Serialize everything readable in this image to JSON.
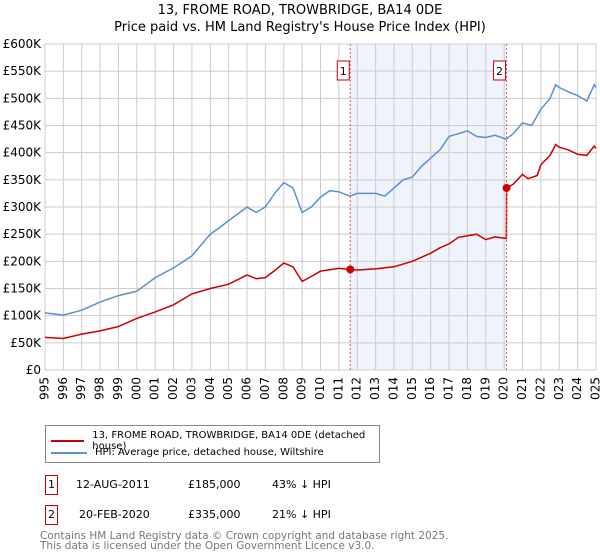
{
  "title": "13, FROME ROAD, TROWBRIDGE, BA14 0DE",
  "subtitle": "Price paid vs. HM Land Registry's House Price Index (HPI)",
  "chart_data": {
    "type": "line",
    "title": "13, FROME ROAD, TROWBRIDGE, BA14 0DE",
    "subtitle": "Price paid vs. HM Land Registry's House Price Index (HPI)",
    "xlim": [
      1995,
      2025
    ],
    "ylim": [
      0,
      600000
    ],
    "x_ticks": [
      "1995",
      "1996",
      "1997",
      "1998",
      "1999",
      "2000",
      "2001",
      "2002",
      "2003",
      "2004",
      "2005",
      "2006",
      "2007",
      "2008",
      "2009",
      "2010",
      "2011",
      "2012",
      "2013",
      "2014",
      "2015",
      "2016",
      "2017",
      "2018",
      "2019",
      "2020",
      "2021",
      "2022",
      "2023",
      "2024",
      "2025"
    ],
    "y_ticks": [
      "£0",
      "£50K",
      "£100K",
      "£150K",
      "£200K",
      "£250K",
      "£300K",
      "£350K",
      "£400K",
      "£450K",
      "£500K",
      "£550K",
      "£600K"
    ],
    "grid": true,
    "series": [
      {
        "name": "13, FROME ROAD, TROWBRIDGE, BA14 0DE (detached house)",
        "color": "#cc0000",
        "x": [
          1995,
          1996,
          1997,
          1998,
          1999,
          2000,
          2001,
          2002,
          2003,
          2004,
          2005,
          2006,
          2006.5,
          2007,
          2007.5,
          2008,
          2008.5,
          2009,
          2009.5,
          2010,
          2011,
          2011.6,
          2012,
          2013,
          2014,
          2015,
          2016,
          2016.5,
          2017,
          2017.5,
          2018,
          2018.5,
          2019,
          2019.5,
          2020.12,
          2020.13,
          2020.5,
          2021,
          2021.3,
          2021.8,
          2022,
          2022.5,
          2022.8,
          2023,
          2023.5,
          2024,
          2024.5,
          2024.9,
          2025
        ],
        "y": [
          60000,
          58000,
          66000,
          72000,
          80000,
          95000,
          107000,
          120000,
          140000,
          150000,
          158000,
          175000,
          168000,
          170000,
          183000,
          197000,
          190000,
          163000,
          172000,
          182000,
          187000,
          185000,
          184000,
          186000,
          190000,
          200000,
          215000,
          225000,
          232000,
          244000,
          247000,
          250000,
          240000,
          245000,
          242000,
          335000,
          342000,
          360000,
          352000,
          358000,
          378000,
          395000,
          415000,
          410000,
          405000,
          397000,
          395000,
          412000,
          408000
        ]
      },
      {
        "name": "HPI: Average price, detached house, Wiltshire",
        "color": "#5b8fd4",
        "x": [
          1995,
          1996,
          1997,
          1998,
          1999,
          2000,
          2001,
          2002,
          2003,
          2004,
          2004.5,
          2005,
          2006,
          2006.5,
          2007,
          2007.5,
          2008,
          2008.5,
          2009,
          2009.5,
          2010,
          2010.5,
          2011,
          2011.6,
          2012,
          2013,
          2013.5,
          2014,
          2014.5,
          2015,
          2015.5,
          2016,
          2016.5,
          2017,
          2017.5,
          2018,
          2018.5,
          2019,
          2019.5,
          2020.1,
          2020.5,
          2021,
          2021.5,
          2022,
          2022.5,
          2022.8,
          2023,
          2023.5,
          2024,
          2024.5,
          2024.9,
          2025
        ],
        "y": [
          105000,
          101000,
          110000,
          125000,
          137000,
          145000,
          170000,
          188000,
          210000,
          250000,
          262000,
          275000,
          300000,
          290000,
          300000,
          325000,
          345000,
          335000,
          290000,
          300000,
          318000,
          330000,
          328000,
          320000,
          325000,
          325000,
          320000,
          335000,
          350000,
          355000,
          375000,
          390000,
          405000,
          430000,
          435000,
          440000,
          430000,
          428000,
          432000,
          425000,
          435000,
          455000,
          450000,
          480000,
          500000,
          525000,
          520000,
          512000,
          505000,
          495000,
          525000,
          520000
        ]
      }
    ],
    "annotations": [
      {
        "label": "1",
        "x": 2011.62,
        "y": 185000
      },
      {
        "label": "2",
        "x": 2020.13,
        "y": 335000
      }
    ],
    "shaded_range": [
      2011.62,
      2020.13
    ]
  },
  "legend": {
    "items": [
      {
        "label": "13, FROME ROAD, TROWBRIDGE, BA14 0DE (detached house)",
        "color": "#cc0000"
      },
      {
        "label": "HPI: Average price, detached house, Wiltshire",
        "color": "#5b8fd4"
      }
    ]
  },
  "transactions": [
    {
      "num": "1",
      "date": "12-AUG-2011",
      "price": "£185,000",
      "hpi": "43% ↓ HPI"
    },
    {
      "num": "2",
      "date": "20-FEB-2020",
      "price": "£335,000",
      "hpi": "21% ↓ HPI"
    }
  ],
  "footer": {
    "line1": "Contains HM Land Registry data © Crown copyright and database right 2025.",
    "line2": "This data is licensed under the Open Government Licence v3.0."
  }
}
